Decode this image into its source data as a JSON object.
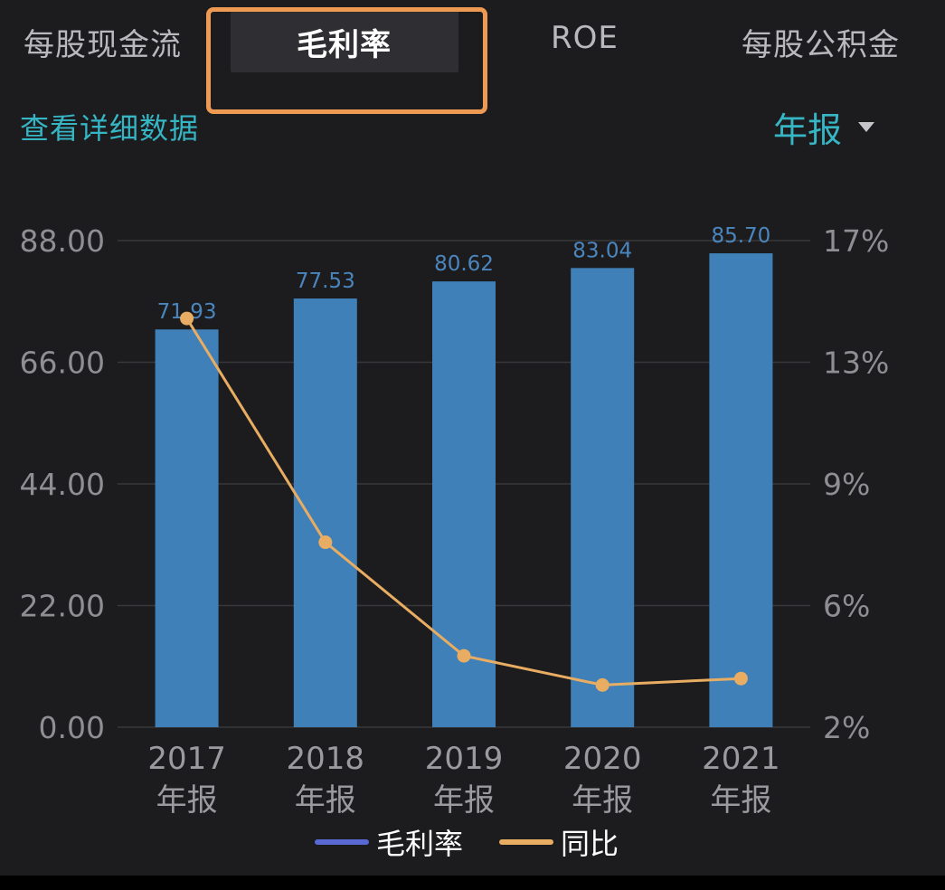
{
  "tabs": [
    {
      "label": "每股现金流"
    },
    {
      "label": "毛利率",
      "active": true
    },
    {
      "label": "ROE"
    },
    {
      "label": "每股公积金"
    }
  ],
  "detail_link": "查看详细数据",
  "period": {
    "label": "年报"
  },
  "colors": {
    "background": "#1c1c1e",
    "bar": "#3f80b8",
    "line": "#e8ad62",
    "accent": "#36b5c4",
    "highlight": "#ef9a52",
    "legend_bar": "#5869d4"
  },
  "chart_data": {
    "type": "bar",
    "categories": [
      "2017\n年报",
      "2018\n年报",
      "2019\n年报",
      "2020\n年报",
      "2021\n年报"
    ],
    "category_years": [
      "2017",
      "2018",
      "2019",
      "2020",
      "2021"
    ],
    "category_period": "年报",
    "series": [
      {
        "name": "毛利率",
        "type": "bar",
        "axis": "left",
        "values": [
          71.93,
          77.53,
          80.62,
          83.04,
          85.7
        ],
        "labels": [
          "71.93",
          "77.53",
          "80.62",
          "83.04",
          "85.70"
        ]
      },
      {
        "name": "同比",
        "type": "line",
        "axis": "right",
        "values": [
          14.6,
          7.7,
          4.2,
          3.3,
          3.5
        ]
      }
    ],
    "y_left": {
      "ticks": [
        "0.00",
        "22.00",
        "44.00",
        "66.00",
        "88.00"
      ],
      "range": [
        0,
        88
      ]
    },
    "y_right": {
      "ticks": [
        "2%",
        "6%",
        "9%",
        "13%",
        "17%"
      ],
      "range": [
        2,
        17
      ]
    },
    "grid": true,
    "legend_position": "bottom-center"
  }
}
